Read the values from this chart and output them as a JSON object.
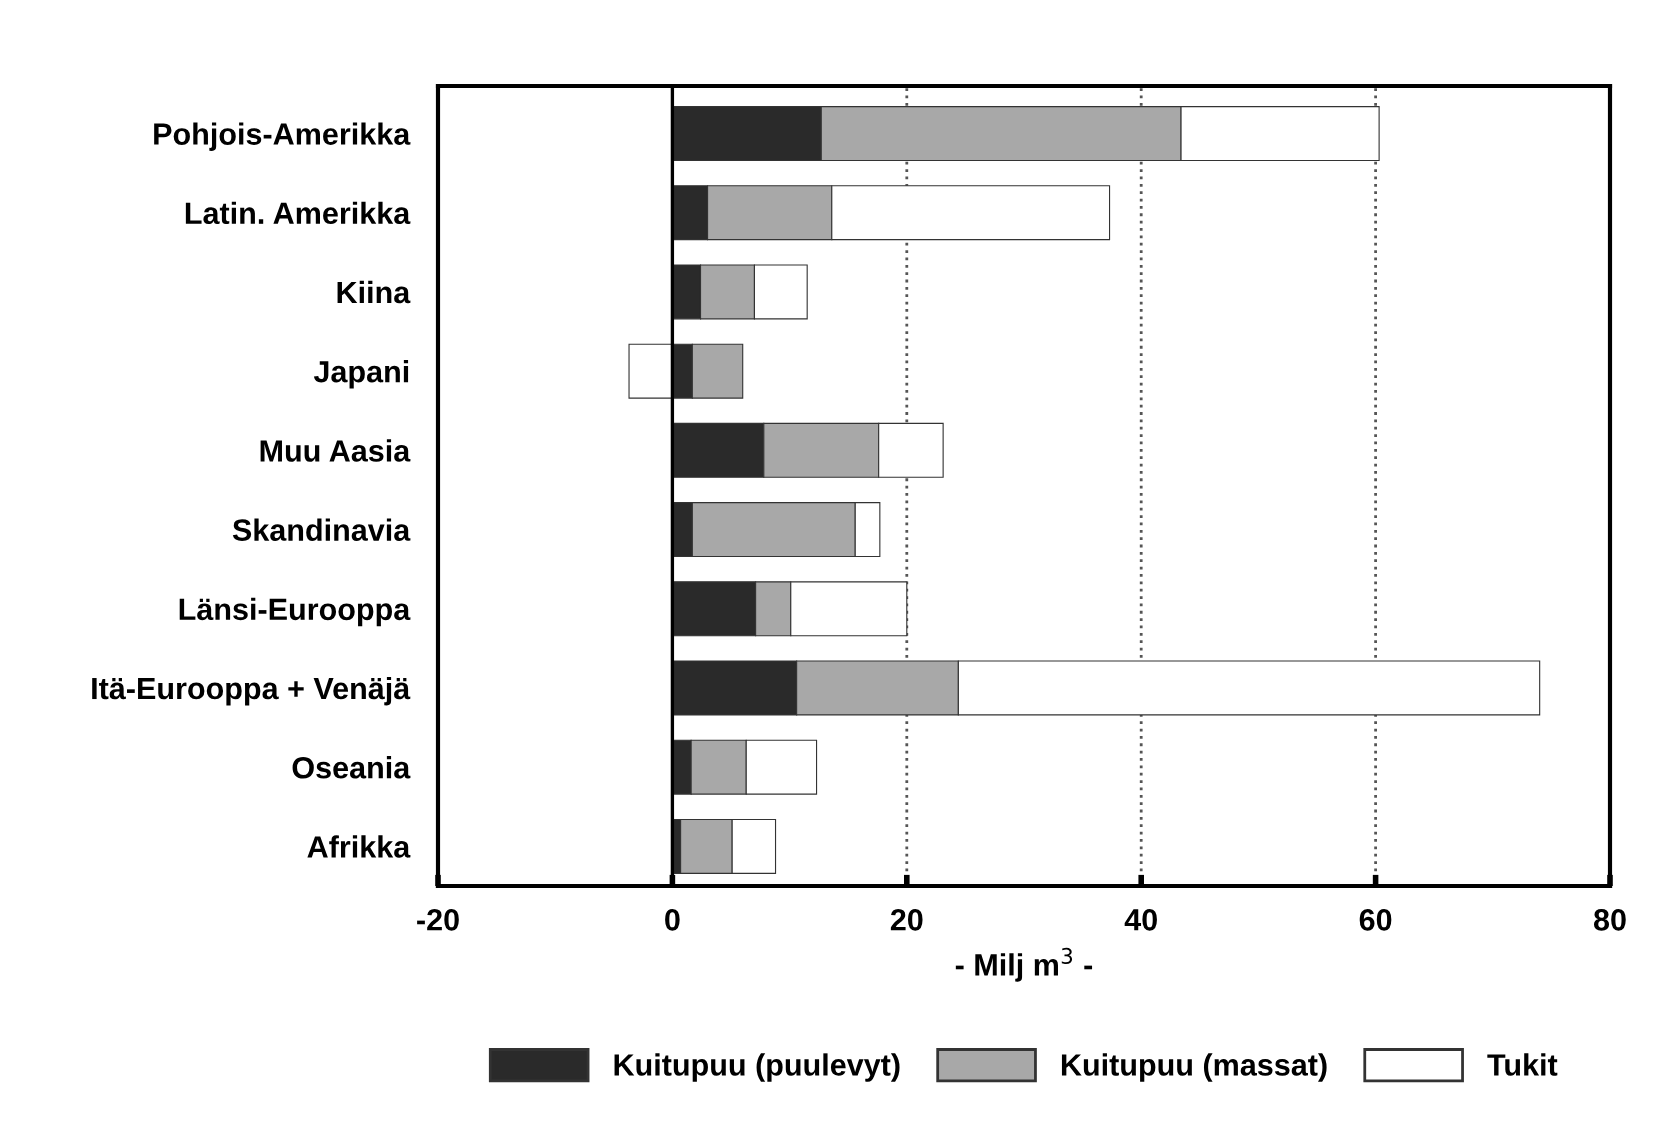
{
  "chart_data": {
    "type": "bar",
    "orientation": "horizontal",
    "stacked": true,
    "xlabel": "- Milj m$^{3}$ -",
    "categories": [
      "Pohjois-Amerikka",
      "Latin. Amerikka",
      "Kiina",
      "Japani",
      "Muu Aasia",
      "Skandinavia",
      "Länsi-Eurooppa",
      "Itä-Eurooppa + Venäjä",
      "Oseania",
      "Afrikka"
    ],
    "series": [
      {
        "name": "Kuitupuu (puulevyt)",
        "color": "#2a2a2a",
        "values": [
          12.7,
          3.0,
          2.4,
          1.7,
          7.8,
          1.7,
          7.1,
          10.6,
          1.6,
          0.7
        ]
      },
      {
        "name": "Kuitupuu (massat)",
        "color": "#a8a8a8",
        "values": [
          30.7,
          10.6,
          4.6,
          4.3,
          9.8,
          13.9,
          3.0,
          13.8,
          4.7,
          4.4
        ]
      },
      {
        "name": "Tukit",
        "color": "#ffffff",
        "values": [
          16.9,
          23.7,
          4.5,
          -3.7,
          5.5,
          2.1,
          9.9,
          49.6,
          6.0,
          3.7
        ]
      }
    ],
    "xlim": [
      -20,
      80
    ],
    "xticks": [
      -20,
      0,
      20,
      40,
      60,
      80
    ],
    "grid": "x",
    "legend": "bottom",
    "ref_lines": [
      {
        "axis": "x",
        "value": 0,
        "color": "#000000",
        "line_style": "solid"
      }
    ]
  }
}
